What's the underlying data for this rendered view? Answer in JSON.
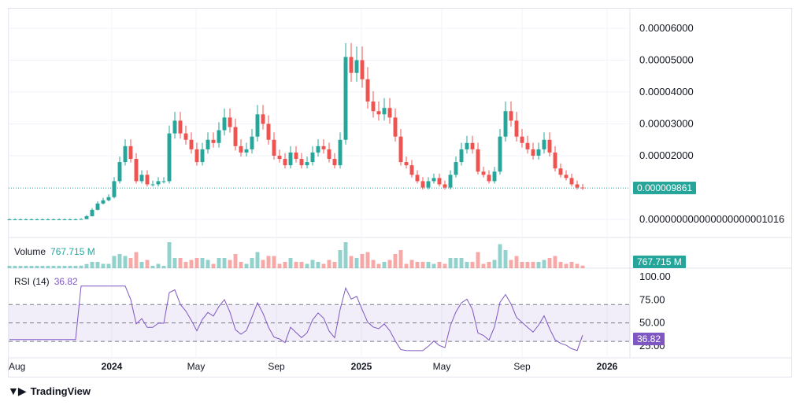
{
  "chart_data": {
    "type": "candlestick",
    "price_axis": {
      "ticks": [
        "0.00006000",
        "0.00005000",
        "0.00004000",
        "0.00003000",
        "0.00002000",
        "0.000000000000000000001016"
      ],
      "tick_values": [
        6e-05,
        5e-05,
        4e-05,
        3e-05,
        2e-05,
        1.016e-21
      ],
      "last_price_label": "0.000009861",
      "last_price": 9.861e-06
    },
    "volume": {
      "legend_label": "Volume",
      "last_value_label": "767.715 M"
    },
    "rsi": {
      "legend_label": "RSI (14)",
      "last_value_label": "36.82",
      "last_value": 36.82,
      "ticks": [
        "100.00",
        "75.00",
        "50.00",
        "25.00"
      ],
      "tick_values": [
        100,
        75,
        50,
        25
      ],
      "band": [
        30,
        70
      ]
    },
    "time_axis": {
      "labels": [
        "Aug",
        "2024",
        "May",
        "Sep",
        "2025",
        "May",
        "Sep",
        "2026"
      ],
      "bold": [
        false,
        true,
        false,
        false,
        true,
        false,
        false,
        true
      ]
    },
    "candles_approx_close": [
      0.0,
      0.0,
      0.0,
      0.0,
      0.0,
      0.0,
      0.0,
      0.0,
      0.0,
      0.0,
      0.0,
      0.0,
      0.0,
      1e-07,
      1e-06,
      3e-06,
      5e-06,
      6e-06,
      7e-06,
      1.2e-05,
      1.8e-05,
      2.3e-05,
      1.9e-05,
      1.2e-05,
      1.4e-05,
      1.1e-05,
      1.1e-05,
      1.2e-05,
      1.2e-05,
      2.7e-05,
      3.1e-05,
      2.7e-05,
      2.5e-05,
      2.2e-05,
      1.8e-05,
      2.2e-05,
      2.5e-05,
      2.4e-05,
      2.8e-05,
      3.2e-05,
      2.9e-05,
      2.3e-05,
      2.1e-05,
      2.2e-05,
      2.6e-05,
      3.3e-05,
      3e-05,
      2.5e-05,
      2e-05,
      1.9e-05,
      1.7e-05,
      2.1e-05,
      1.9e-05,
      1.7e-05,
      1.8e-05,
      2.1e-05,
      2.3e-05,
      2.2e-05,
      1.9e-05,
      1.7e-05,
      2.5e-05,
      5.1e-05,
      4.6e-05,
      5e-05,
      4.4e-05,
      3.7e-05,
      3.4e-05,
      3.3e-05,
      3.5e-05,
      3.2e-05,
      2.6e-05,
      1.8e-05,
      1.7e-05,
      1.4e-05,
      1.2e-05,
      1e-05,
      1.2e-05,
      1.3e-05,
      1.1e-05,
      1e-05,
      1.4e-05,
      1.8e-05,
      2.2e-05,
      2.4e-05,
      2.2e-05,
      1.5e-05,
      1.4e-05,
      1.2e-05,
      1.5e-05,
      2.6e-05,
      3.4e-05,
      3.1e-05,
      2.6e-05,
      2.4e-05,
      2.2e-05,
      2e-05,
      2.2e-05,
      2.5e-05,
      2.1e-05,
      1.6e-05,
      1.4e-05,
      1.3e-05,
      1.1e-05,
      1e-05,
      9.861e-06
    ]
  },
  "brand": {
    "name": "TradingView"
  },
  "colors": {
    "up": "#26a69a",
    "down": "#ef5350",
    "rsi": "#7e57c2",
    "grid": "#f0f3fa"
  }
}
